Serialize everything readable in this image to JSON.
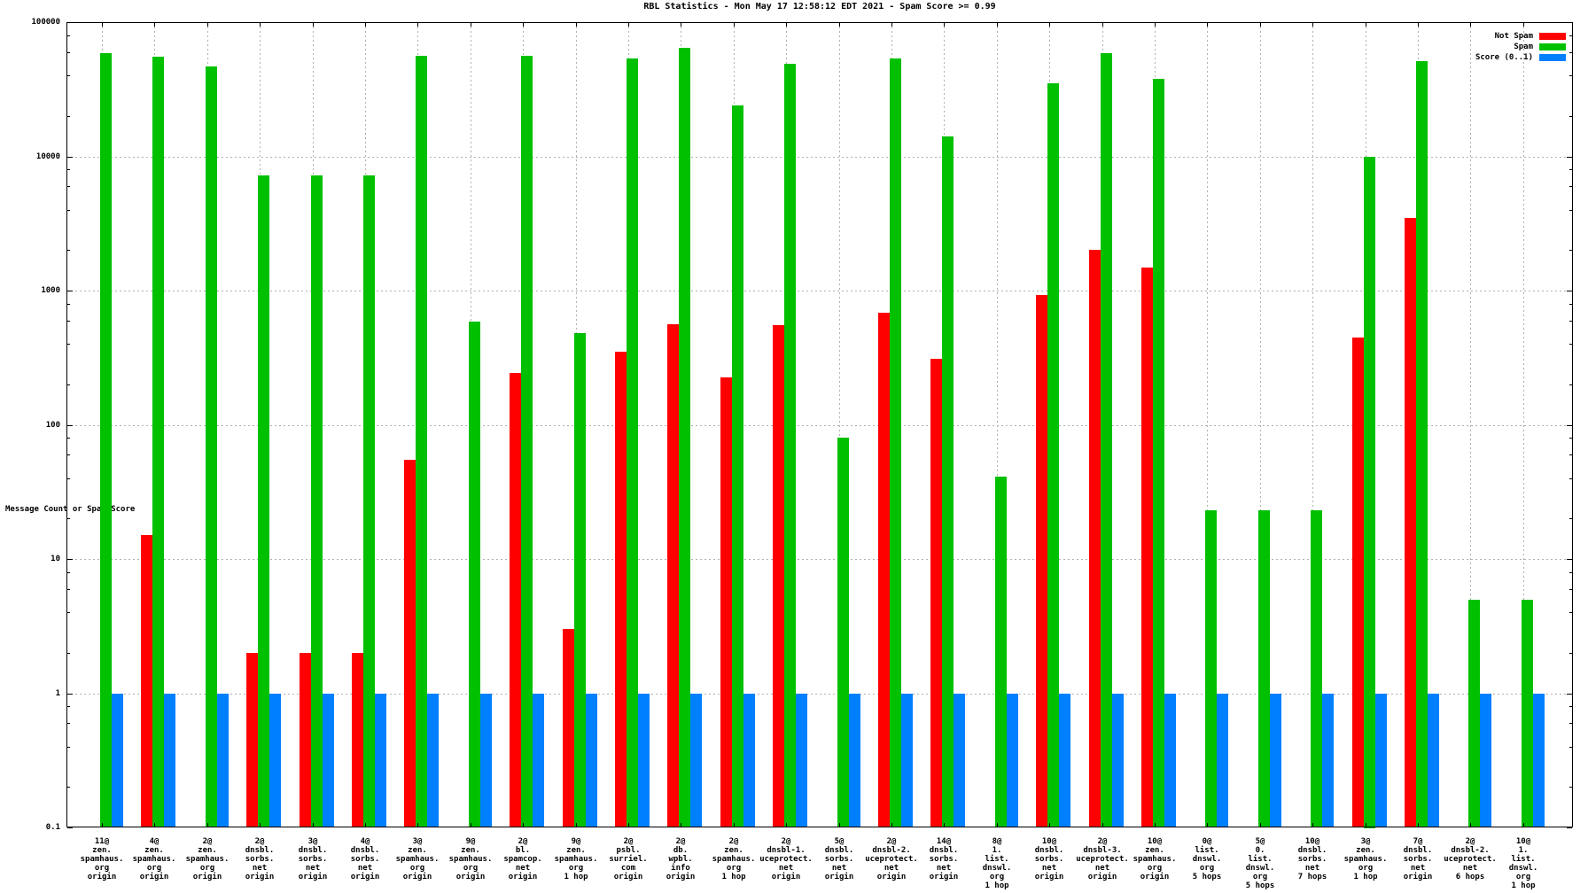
{
  "chart_data": {
    "type": "bar",
    "title": "RBL Statistics - Mon May 17 12:58:12 EDT 2021 - Spam Score >= 0.99",
    "ylabel": "Message Count or Spam Score",
    "xlabel": "",
    "yscale": "log",
    "ylim": [
      0.1,
      100000
    ],
    "ytick_values": [
      0.1,
      1,
      10,
      100,
      1000,
      10000,
      100000
    ],
    "ytick_labels": [
      "0.1",
      "1",
      "10",
      "100",
      "1000",
      "10000",
      "100000"
    ],
    "grid": true,
    "legend_position": "top-right",
    "categories": [
      [
        "11@",
        "zen.",
        "spamhaus.",
        "org",
        "origin"
      ],
      [
        "4@",
        "zen.",
        "spamhaus.",
        "org",
        "origin"
      ],
      [
        "2@",
        "zen.",
        "spamhaus.",
        "org",
        "origin"
      ],
      [
        "2@",
        "dnsbl.",
        "sorbs.",
        "net",
        "origin"
      ],
      [
        "3@",
        "dnsbl.",
        "sorbs.",
        "net",
        "origin"
      ],
      [
        "4@",
        "dnsbl.",
        "sorbs.",
        "net",
        "origin"
      ],
      [
        "3@",
        "zen.",
        "spamhaus.",
        "org",
        "origin"
      ],
      [
        "9@",
        "zen.",
        "spamhaus.",
        "org",
        "origin"
      ],
      [
        "2@",
        "bl.",
        "spamcop.",
        "net",
        "origin"
      ],
      [
        "9@",
        "zen.",
        "spamhaus.",
        "org",
        "1 hop"
      ],
      [
        "2@",
        "psbl.",
        "surriel.",
        "com",
        "origin"
      ],
      [
        "2@",
        "db.",
        "wpbl.",
        "info",
        "origin"
      ],
      [
        "2@",
        "zen.",
        "spamhaus.",
        "org",
        "1 hop"
      ],
      [
        "2@",
        "dnsbl-1.",
        "uceprotect.",
        "net",
        "origin"
      ],
      [
        "5@",
        "dnsbl.",
        "sorbs.",
        "net",
        "origin"
      ],
      [
        "2@",
        "dnsbl-2.",
        "uceprotect.",
        "net",
        "origin"
      ],
      [
        "14@",
        "dnsbl.",
        "sorbs.",
        "net",
        "origin"
      ],
      [
        "8@",
        "1.",
        "list.",
        "dnswl.",
        "org",
        "1 hop"
      ],
      [
        "10@",
        "dnsbl.",
        "sorbs.",
        "net",
        "origin"
      ],
      [
        "2@",
        "dnsbl-3.",
        "uceprotect.",
        "net",
        "origin"
      ],
      [
        "10@",
        "zen.",
        "spamhaus.",
        "org",
        "origin"
      ],
      [
        "0@",
        "list.",
        "dnswl.",
        "org",
        "5 hops"
      ],
      [
        "5@",
        "0.",
        "list.",
        "dnswl.",
        "org",
        "5 hops"
      ],
      [
        "10@",
        "dnsbl.",
        "sorbs.",
        "net",
        "7 hops"
      ],
      [
        "3@",
        "zen.",
        "spamhaus.",
        "org",
        "1 hop"
      ],
      [
        "7@",
        "dnsbl.",
        "sorbs.",
        "net",
        "origin"
      ],
      [
        "2@",
        "dnsbl-2.",
        "uceprotect.",
        "net",
        "6 hops"
      ],
      [
        "10@",
        "1.",
        "list.",
        "dnswl.",
        "org",
        "1 hop"
      ]
    ],
    "series": [
      {
        "name": "Not Spam",
        "color": "#ff0000",
        "values": [
          null,
          15,
          null,
          2,
          2,
          2,
          55,
          null,
          245,
          3,
          350,
          560,
          225,
          550,
          null,
          680,
          310,
          null,
          930,
          2000,
          1480,
          null,
          null,
          null,
          450,
          3500,
          null,
          null
        ]
      },
      {
        "name": "Spam",
        "color": "#00c000",
        "values": [
          59000,
          55000,
          47000,
          7200,
          7200,
          7200,
          56000,
          590,
          56500,
          480,
          54000,
          64000,
          24000,
          49000,
          80,
          54000,
          14000,
          41,
          35000,
          59000,
          38000,
          23,
          23,
          23,
          10000,
          51000,
          5,
          5
        ]
      },
      {
        "name": "Score (0..1)",
        "color": "#0080ff",
        "values": [
          0.99,
          0.99,
          0.99,
          0.99,
          0.99,
          0.99,
          0.99,
          0.99,
          0.99,
          0.99,
          0.99,
          0.99,
          0.99,
          0.99,
          0.99,
          0.99,
          0.99,
          0.99,
          0.99,
          0.99,
          0.99,
          0.99,
          0.99,
          0.99,
          0.99,
          0.99,
          0.99,
          0.99
        ]
      }
    ]
  }
}
